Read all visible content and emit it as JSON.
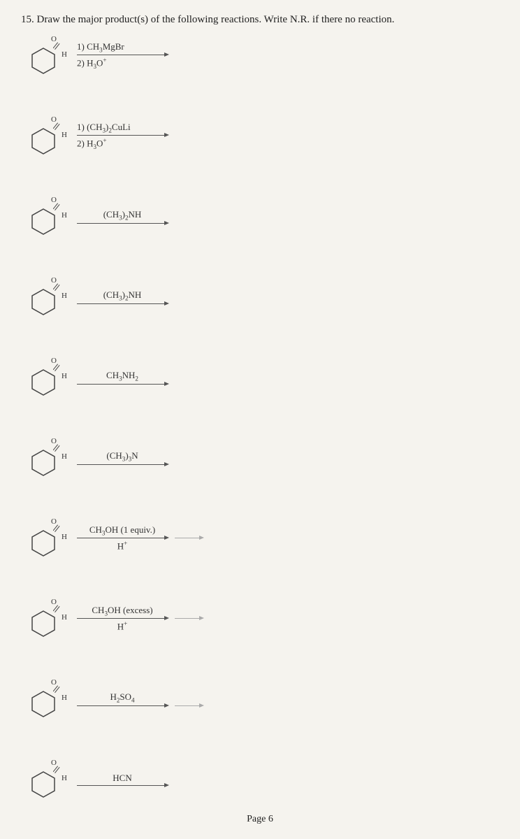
{
  "question": {
    "number": "15.",
    "text": "Draw the major product(s) of the following reactions. Write N.R. if there no reaction."
  },
  "molecule": {
    "oxygen": "O",
    "hydrogen": "H",
    "hexagon_stroke": "#444",
    "hexagon_fill": "none"
  },
  "reactions": [
    {
      "reagent_top": "1) CH₃MgBr",
      "reagent_bottom": "2) H₃O⁺",
      "has_gray_arrow": false,
      "two_line": true
    },
    {
      "reagent_top": "1) (CH₃)₂CuLi",
      "reagent_bottom": "2) H₃O⁺",
      "has_gray_arrow": false,
      "two_line": true
    },
    {
      "reagent_top": "(CH₃)₂NH",
      "reagent_bottom": "",
      "has_gray_arrow": false,
      "two_line": false
    },
    {
      "reagent_top": "(CH₃)₂NH",
      "reagent_bottom": "",
      "has_gray_arrow": false,
      "two_line": false
    },
    {
      "reagent_top": "CH₃NH₂",
      "reagent_bottom": "",
      "has_gray_arrow": false,
      "two_line": false
    },
    {
      "reagent_top": "(CH₃)₃N",
      "reagent_bottom": "",
      "has_gray_arrow": false,
      "two_line": false
    },
    {
      "reagent_top": "CH₃OH (1 equiv.)",
      "reagent_bottom": "H⁺",
      "has_gray_arrow": true,
      "two_line": false
    },
    {
      "reagent_top": "CH₃OH (excess)",
      "reagent_bottom": "H⁺",
      "has_gray_arrow": true,
      "two_line": false
    },
    {
      "reagent_top": "H₂SO₄",
      "reagent_bottom": "",
      "has_gray_arrow": true,
      "two_line": false
    },
    {
      "reagent_top": "HCN",
      "reagent_bottom": "",
      "has_gray_arrow": false,
      "two_line": false
    }
  ],
  "page": "Page 6",
  "colors": {
    "background": "#f5f3ee",
    "text": "#333",
    "arrow": "#555",
    "gray_arrow": "#aaa"
  }
}
